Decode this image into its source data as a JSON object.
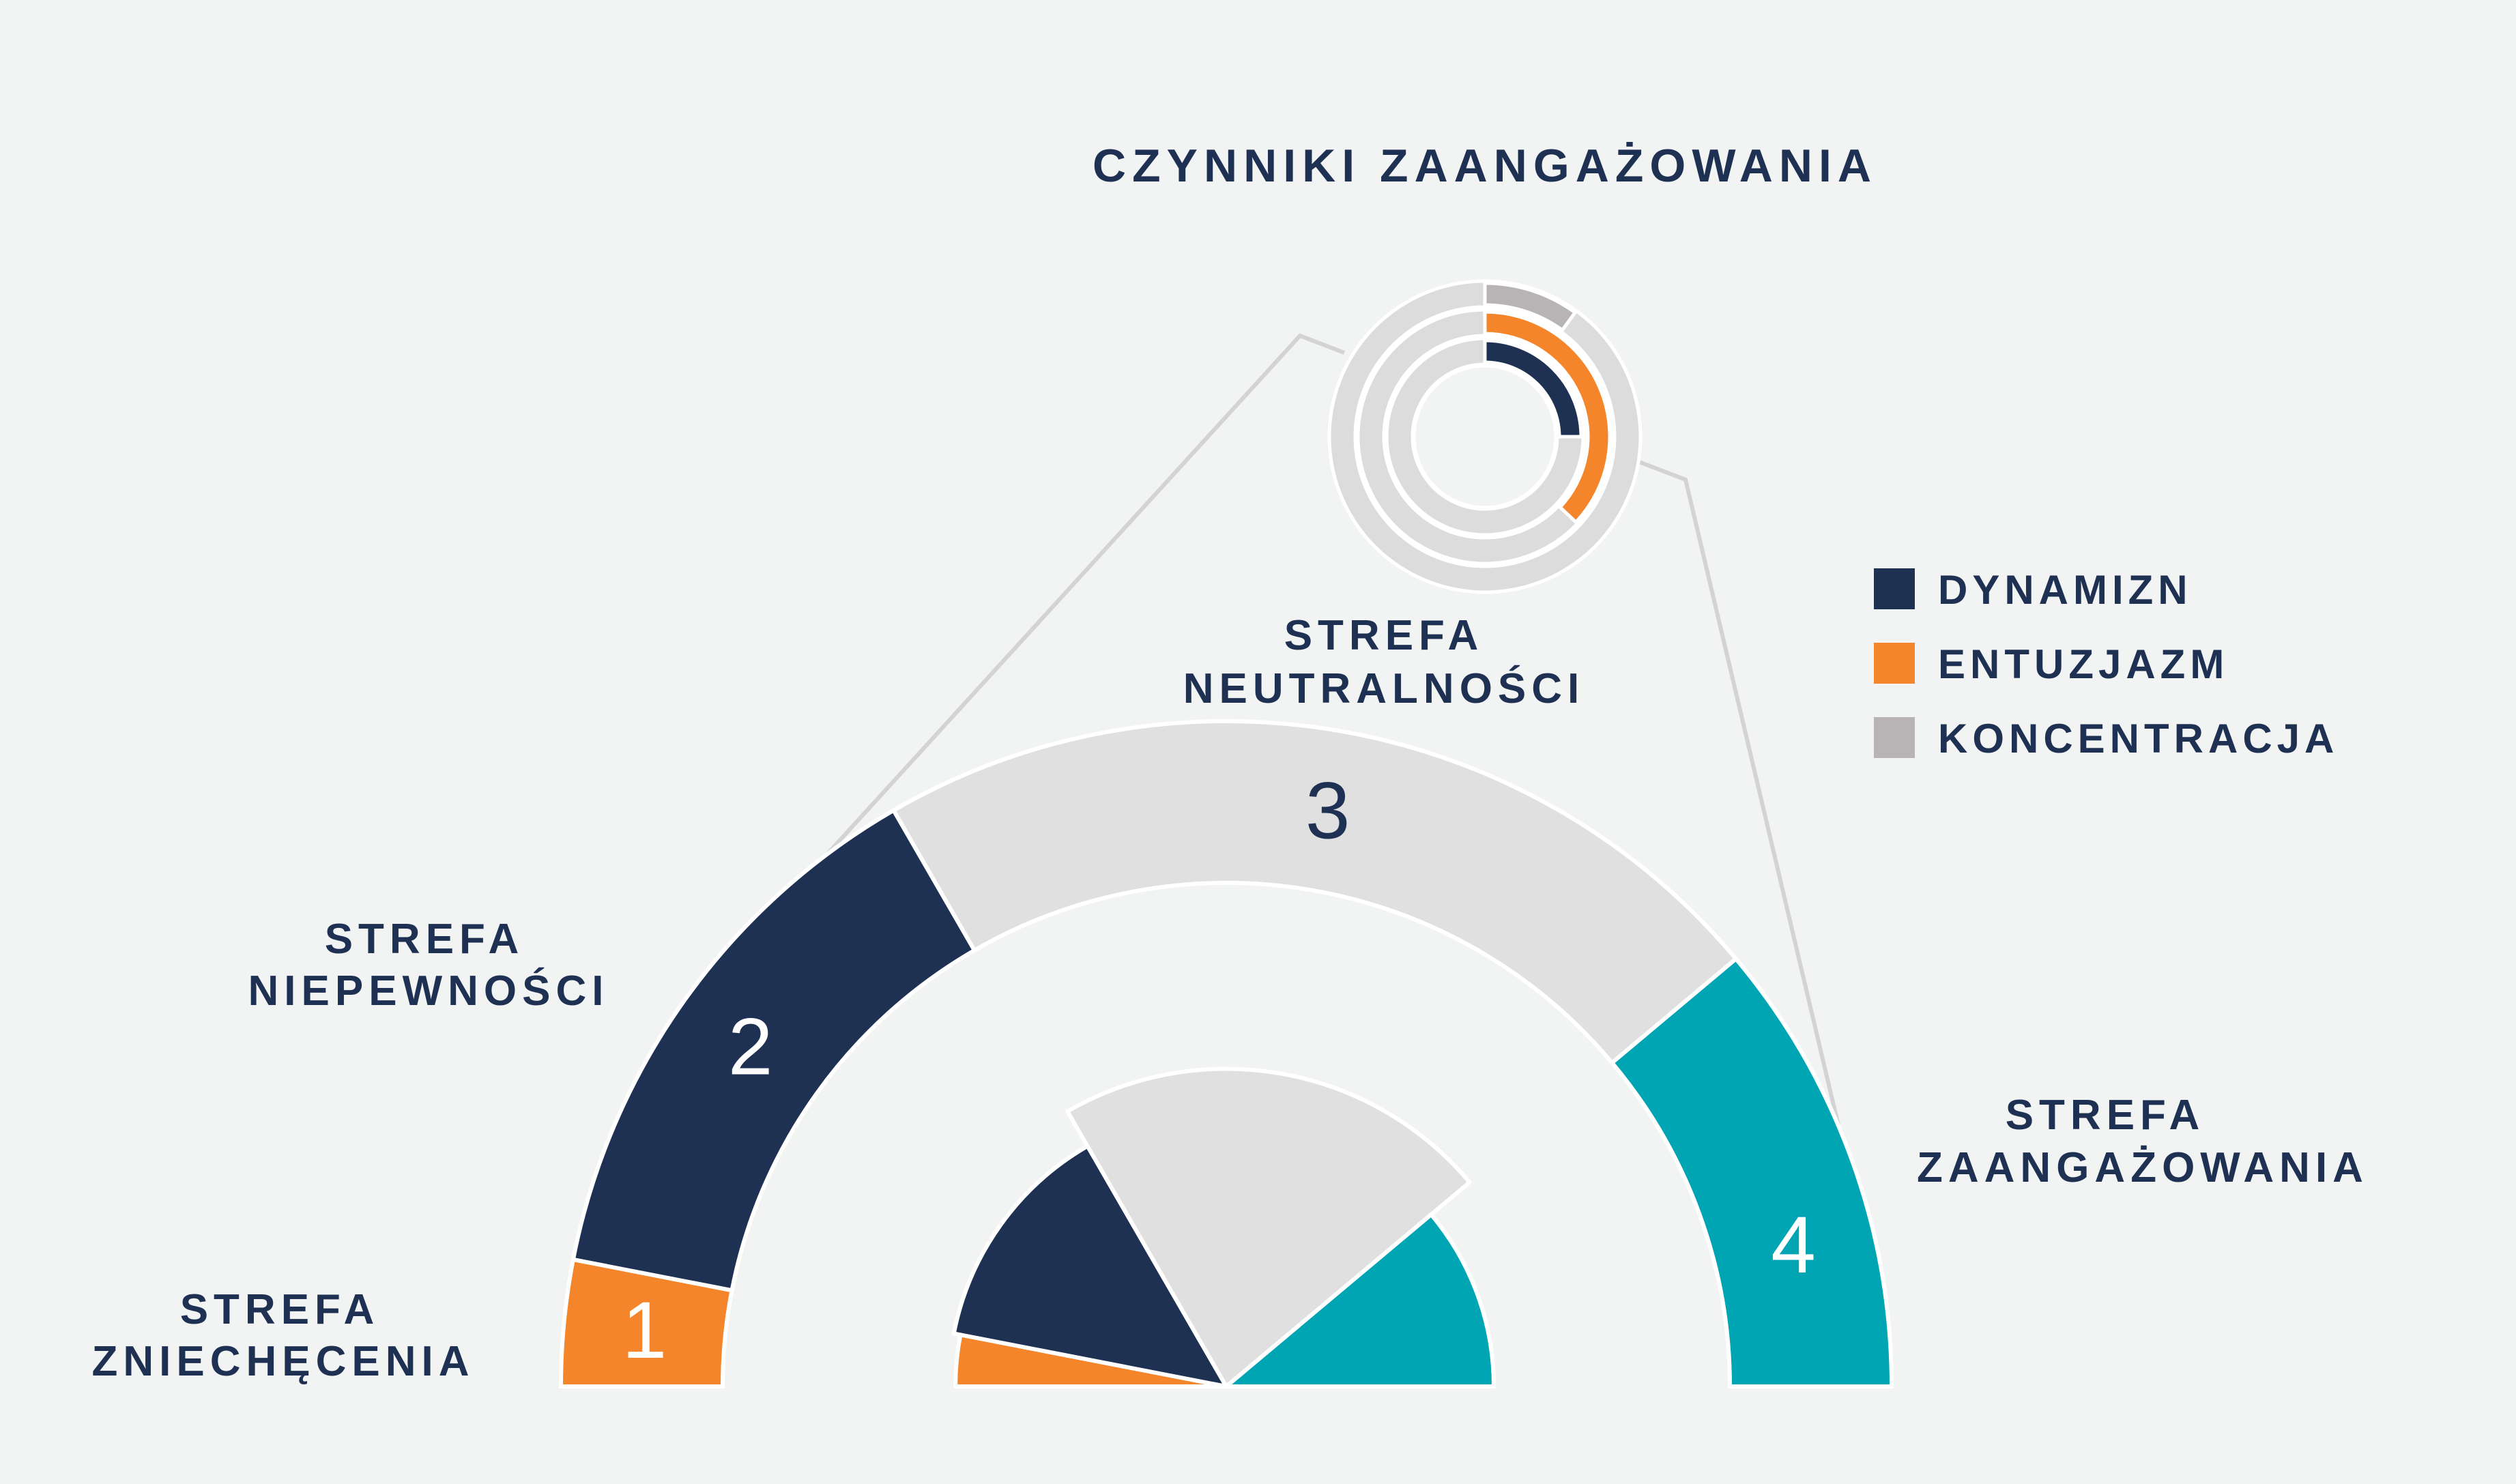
{
  "title": "CZYNNIKI ZAANGAŻOWANIA",
  "colors": {
    "navy": "#1e3153",
    "orange": "#f4852a",
    "teal": "#00a5b4",
    "light_gray": "#e0e0e0",
    "gray": "#b8b4b6",
    "connector": "#d3d3d3",
    "text": "#1e3153",
    "background": "#f2f3f3"
  },
  "zones": [
    {
      "number": "1",
      "label_line1": "STREFA",
      "label_line2": "ZNIECHĘCENIA",
      "color": "orange",
      "start_deg": 180,
      "end_deg": 169,
      "num_color": "#ffffff"
    },
    {
      "number": "2",
      "label_line1": "STREFA",
      "label_line2": "NIEPEWNOŚCI",
      "color": "navy",
      "start_deg": 169,
      "end_deg": 120,
      "num_color": "#ffffff"
    },
    {
      "number": "3",
      "label_line1": "STREFA",
      "label_line2": "NEUTRALNOŚCI",
      "color": "light_gray",
      "start_deg": 120,
      "end_deg": 40,
      "num_color": "#1e3153"
    },
    {
      "number": "4",
      "label_line1": "STREFA",
      "label_line2": "ZAANGAŻOWANIA",
      "color": "teal",
      "start_deg": 40,
      "end_deg": 0,
      "num_color": "#ffffff"
    }
  ],
  "inner_pie": [
    {
      "color": "orange",
      "start_deg": 180,
      "end_deg": 169,
      "radius_frac": 0.81
    },
    {
      "color": "navy",
      "start_deg": 169,
      "end_deg": 120,
      "radius_frac": 0.83
    },
    {
      "color": "light_gray",
      "start_deg": 120,
      "end_deg": 40,
      "radius_frac": 0.95
    },
    {
      "color": "teal",
      "start_deg": 40,
      "end_deg": 0,
      "radius_frac": 0.8
    }
  ],
  "factor_rings": [
    {
      "name": "KONCENTRACJA",
      "color": "gray",
      "fill_fraction": 0.1
    },
    {
      "name": "ENTUZJAZM",
      "color": "orange",
      "fill_fraction": 0.37
    },
    {
      "name": "DYNAMIZN",
      "color": "navy",
      "fill_fraction": 0.25
    }
  ],
  "legend": [
    {
      "label": "DYNAMIZN",
      "color": "navy"
    },
    {
      "label": "ENTUZJAZM",
      "color": "orange"
    },
    {
      "label": "KONCENTRACJA",
      "color": "gray"
    }
  ]
}
